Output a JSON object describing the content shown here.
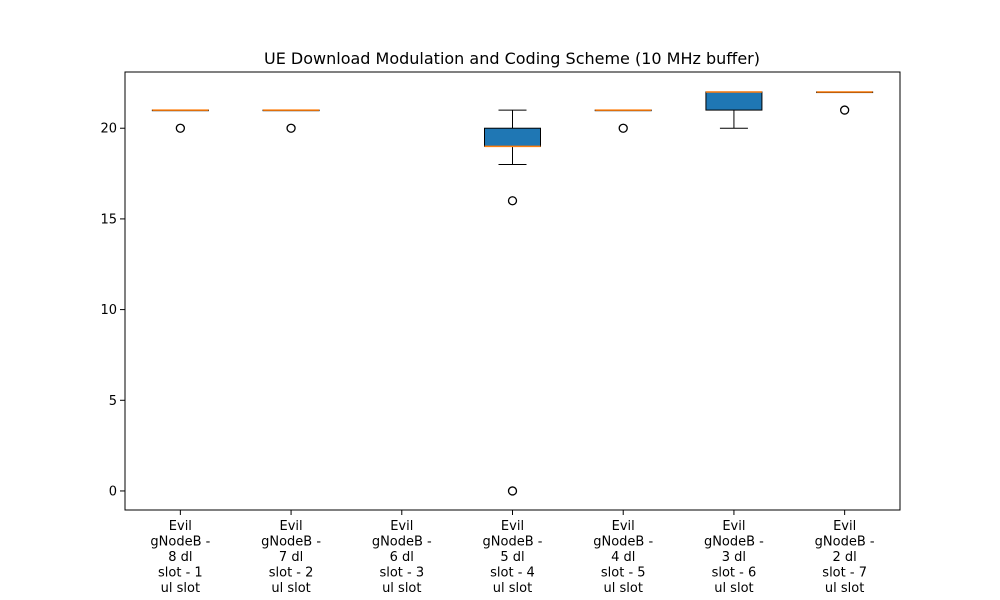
{
  "chart_data": {
    "type": "box",
    "title": "UE Download Modulation and Coding Scheme (10 MHz buffer)",
    "xlabel": "",
    "ylabel": "",
    "ylim": [
      -1.05,
      23.1
    ],
    "yticks": [
      0,
      5,
      10,
      15,
      20
    ],
    "colors": {
      "box_fill": "#1f77b4",
      "median": "#ff7f0e",
      "whisker": "#000000"
    },
    "categories": [
      "Evil gNodeB - 8 dl slot - 1 ul slot",
      "Evil gNodeB - 7 dl slot - 2 ul slot",
      "Evil gNodeB - 6 dl slot - 3 ul slot",
      "Evil gNodeB - 5 dl slot - 4 ul slot",
      "Evil gNodeB - 4 dl slot - 5 ul slot",
      "Evil gNodeB - 3 dl slot - 6 ul slot",
      "Evil gNodeB - 2 dl slot - 7 ul slot"
    ],
    "category_lines": [
      [
        "Evil",
        "gNodeB -",
        "8 dl",
        "slot - 1",
        "ul slot"
      ],
      [
        "Evil",
        "gNodeB -",
        "7 dl",
        "slot - 2",
        "ul slot"
      ],
      [
        "Evil",
        "gNodeB -",
        "6 dl",
        "slot - 3",
        "ul slot"
      ],
      [
        "Evil",
        "gNodeB -",
        "5 dl",
        "slot - 4",
        "ul slot"
      ],
      [
        "Evil",
        "gNodeB -",
        "4 dl",
        "slot - 5",
        "ul slot"
      ],
      [
        "Evil",
        "gNodeB -",
        "3 dl",
        "slot - 6",
        "ul slot"
      ],
      [
        "Evil",
        "gNodeB -",
        "2 dl",
        "slot - 7",
        "ul slot"
      ]
    ],
    "boxes": [
      {
        "whisker_low": 21,
        "q1": 21,
        "median": 21,
        "q3": 21,
        "whisker_high": 21,
        "outliers": [
          20
        ]
      },
      {
        "whisker_low": 21,
        "q1": 21,
        "median": 21,
        "q3": 21,
        "whisker_high": 21,
        "outliers": [
          20
        ]
      },
      null,
      {
        "whisker_low": 18,
        "q1": 19,
        "median": 19,
        "q3": 20,
        "whisker_high": 21,
        "outliers": [
          16,
          0
        ]
      },
      {
        "whisker_low": 21,
        "q1": 21,
        "median": 21,
        "q3": 21,
        "whisker_high": 21,
        "outliers": [
          20
        ]
      },
      {
        "whisker_low": 20,
        "q1": 21,
        "median": 22,
        "q3": 22,
        "whisker_high": 22,
        "outliers": []
      },
      {
        "whisker_low": 22,
        "q1": 22,
        "median": 22,
        "q3": 22,
        "whisker_high": 22,
        "outliers": [
          21
        ]
      }
    ]
  }
}
